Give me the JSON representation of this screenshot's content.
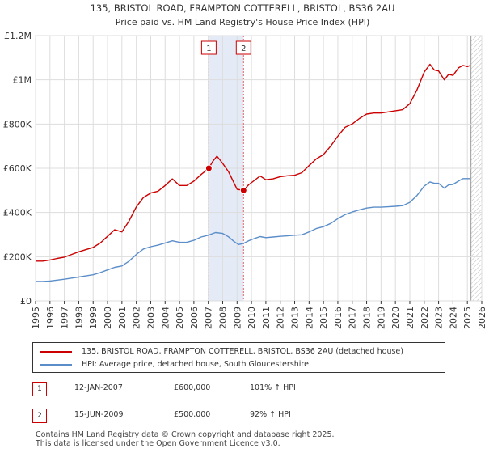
{
  "chart_data": {
    "type": "line",
    "title": "135, BRISTOL ROAD, FRAMPTON COTTERELL, BRISTOL, BS36 2AU",
    "subtitle": "Price paid vs. HM Land Registry's House Price Index (HPI)",
    "xlabel": "",
    "ylabel": "",
    "xlim": [
      1995,
      2026
    ],
    "ylim": [
      0,
      1200000
    ],
    "x_ticks": [
      1995,
      1996,
      1997,
      1998,
      1999,
      2000,
      2001,
      2002,
      2003,
      2004,
      2005,
      2006,
      2007,
      2008,
      2009,
      2010,
      2011,
      2012,
      2013,
      2014,
      2015,
      2016,
      2017,
      2018,
      2019,
      2020,
      2021,
      2022,
      2023,
      2024,
      2025,
      2026
    ],
    "y_ticks": [
      {
        "value": 0,
        "label": "£0"
      },
      {
        "value": 200000,
        "label": "£200K"
      },
      {
        "value": 400000,
        "label": "£400K"
      },
      {
        "value": 600000,
        "label": "£600K"
      },
      {
        "value": 800000,
        "label": "£800K"
      },
      {
        "value": 1000000,
        "label": "£1M"
      },
      {
        "value": 1200000,
        "label": "£1.2M"
      }
    ],
    "grid": true,
    "series": [
      {
        "name": "135, BRISTOL ROAD, FRAMPTON COTTERELL, BRISTOL, BS36 2AU (detached house)",
        "color": "#cc0000",
        "x": [
          1995.0,
          1995.5,
          1996.0,
          1996.5,
          1997.0,
          1997.5,
          1998.0,
          1998.5,
          1999.0,
          1999.5,
          2000.0,
          2000.5,
          2001.0,
          2001.5,
          2002.0,
          2002.5,
          2003.0,
          2003.5,
          2004.0,
          2004.5,
          2005.0,
          2005.5,
          2006.0,
          2006.5,
          2007.04,
          2007.3,
          2007.6,
          2008.0,
          2008.4,
          2008.8,
          2009.0,
          2009.45,
          2009.8,
          2010.2,
          2010.6,
          2011.0,
          2011.5,
          2012.0,
          2012.5,
          2013.0,
          2013.5,
          2014.0,
          2014.5,
          2015.0,
          2015.5,
          2016.0,
          2016.5,
          2017.0,
          2017.5,
          2018.0,
          2018.5,
          2019.0,
          2019.5,
          2020.0,
          2020.5,
          2021.0,
          2021.5,
          2022.0,
          2022.4,
          2022.7,
          2023.0,
          2023.4,
          2023.7,
          2024.0,
          2024.4,
          2024.7,
          2025.0,
          2025.2
        ],
        "y": [
          180000,
          180000,
          185000,
          192000,
          198000,
          210000,
          222000,
          232000,
          242000,
          262000,
          292000,
          322000,
          312000,
          362000,
          425000,
          468000,
          488000,
          496000,
          522000,
          552000,
          522000,
          522000,
          542000,
          572000,
          600000,
          630000,
          655000,
          622000,
          585000,
          532000,
          505000,
          500000,
          525000,
          545000,
          565000,
          548000,
          552000,
          562000,
          566000,
          568000,
          580000,
          612000,
          642000,
          662000,
          700000,
          745000,
          785000,
          800000,
          825000,
          845000,
          850000,
          850000,
          855000,
          860000,
          865000,
          892000,
          955000,
          1035000,
          1070000,
          1045000,
          1040000,
          1000000,
          1025000,
          1020000,
          1055000,
          1065000,
          1060000,
          1065000
        ]
      },
      {
        "name": "HPI: Average price, detached house, South Gloucestershire",
        "color": "#5b8ec9",
        "x": [
          1995.0,
          1995.5,
          1996.0,
          1996.5,
          1997.0,
          1997.5,
          1998.0,
          1998.5,
          1999.0,
          1999.5,
          2000.0,
          2000.5,
          2001.0,
          2001.5,
          2002.0,
          2002.5,
          2003.0,
          2003.5,
          2004.0,
          2004.5,
          2005.0,
          2005.5,
          2006.0,
          2006.5,
          2007.0,
          2007.5,
          2008.0,
          2008.4,
          2008.8,
          2009.1,
          2009.45,
          2009.8,
          2010.2,
          2010.6,
          2011.0,
          2011.5,
          2012.0,
          2012.5,
          2013.0,
          2013.5,
          2014.0,
          2014.5,
          2015.0,
          2015.5,
          2016.0,
          2016.5,
          2017.0,
          2017.5,
          2018.0,
          2018.5,
          2019.0,
          2019.5,
          2020.0,
          2020.5,
          2021.0,
          2021.5,
          2022.0,
          2022.4,
          2022.7,
          2023.0,
          2023.4,
          2023.7,
          2024.0,
          2024.4,
          2024.7,
          2025.0,
          2025.2
        ],
        "y": [
          88000,
          88000,
          90000,
          94000,
          98000,
          103000,
          108000,
          113000,
          118000,
          128000,
          140000,
          152000,
          158000,
          180000,
          210000,
          235000,
          245000,
          252000,
          262000,
          272000,
          265000,
          265000,
          274000,
          289000,
          297000,
          309000,
          305000,
          290000,
          268000,
          255000,
          260000,
          272000,
          282000,
          291000,
          286000,
          289000,
          292000,
          294000,
          297000,
          299000,
          312000,
          327000,
          336000,
          350000,
          372000,
          390000,
          402000,
          412000,
          420000,
          424000,
          424000,
          426000,
          428000,
          431000,
          446000,
          477000,
          519000,
          538000,
          532000,
          532000,
          510000,
          525000,
          527000,
          543000,
          553000,
          553000,
          553000
        ]
      }
    ],
    "sales": [
      {
        "num": "1",
        "x": 2007.04,
        "y": 600000
      },
      {
        "num": "2",
        "x": 2009.45,
        "y": 500000
      }
    ],
    "highlight_range": [
      2007.04,
      2009.45
    ],
    "forecast_start": 2025.25
  },
  "legend": {
    "property_label": "135, BRISTOL ROAD, FRAMPTON COTTERELL, BRISTOL, BS36 2AU (detached house)",
    "hpi_label": "HPI: Average price, detached house, South Gloucestershire",
    "property_color": "#cc0000",
    "hpi_color": "#5b8ec9"
  },
  "sales_table": [
    {
      "num": "1",
      "date": "12-JAN-2007",
      "price": "£600,000",
      "hpi": "101% ↑ HPI"
    },
    {
      "num": "2",
      "date": "15-JUN-2009",
      "price": "£500,000",
      "hpi": "92% ↑ HPI"
    }
  ],
  "footer": {
    "line1": "Contains HM Land Registry data © Crown copyright and database right 2025.",
    "line2": "This data is licensed under the Open Government Licence v3.0."
  }
}
